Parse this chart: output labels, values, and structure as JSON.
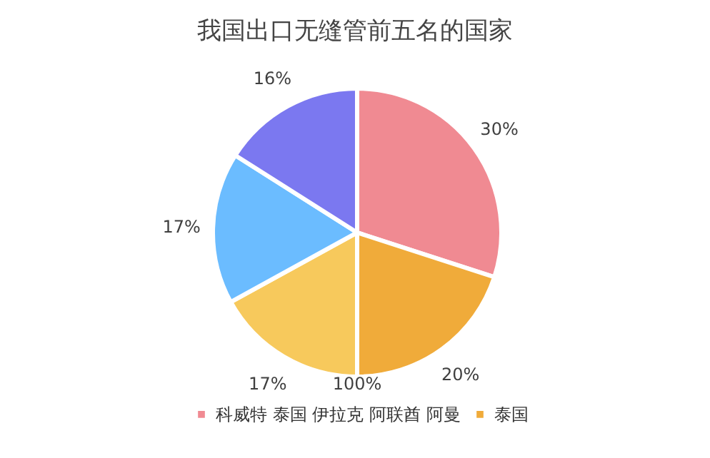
{
  "chart_data": {
    "type": "pie",
    "title": "我国出口无缝管前五名的国家",
    "categories": [
      "科威特 泰国 伊拉克 阿联酋 阿曼",
      "泰国",
      null,
      null,
      null
    ],
    "values": [
      30,
      20,
      17,
      17,
      16
    ],
    "colors": [
      "#f08a92",
      "#f0ab3a",
      "#f7c95c",
      "#6bbcff",
      "#7b78f0"
    ],
    "value_labels": [
      "30%",
      "20%",
      "17%",
      "17%",
      "16%"
    ],
    "legend": "bottom",
    "annotations": [
      "100%"
    ]
  }
}
